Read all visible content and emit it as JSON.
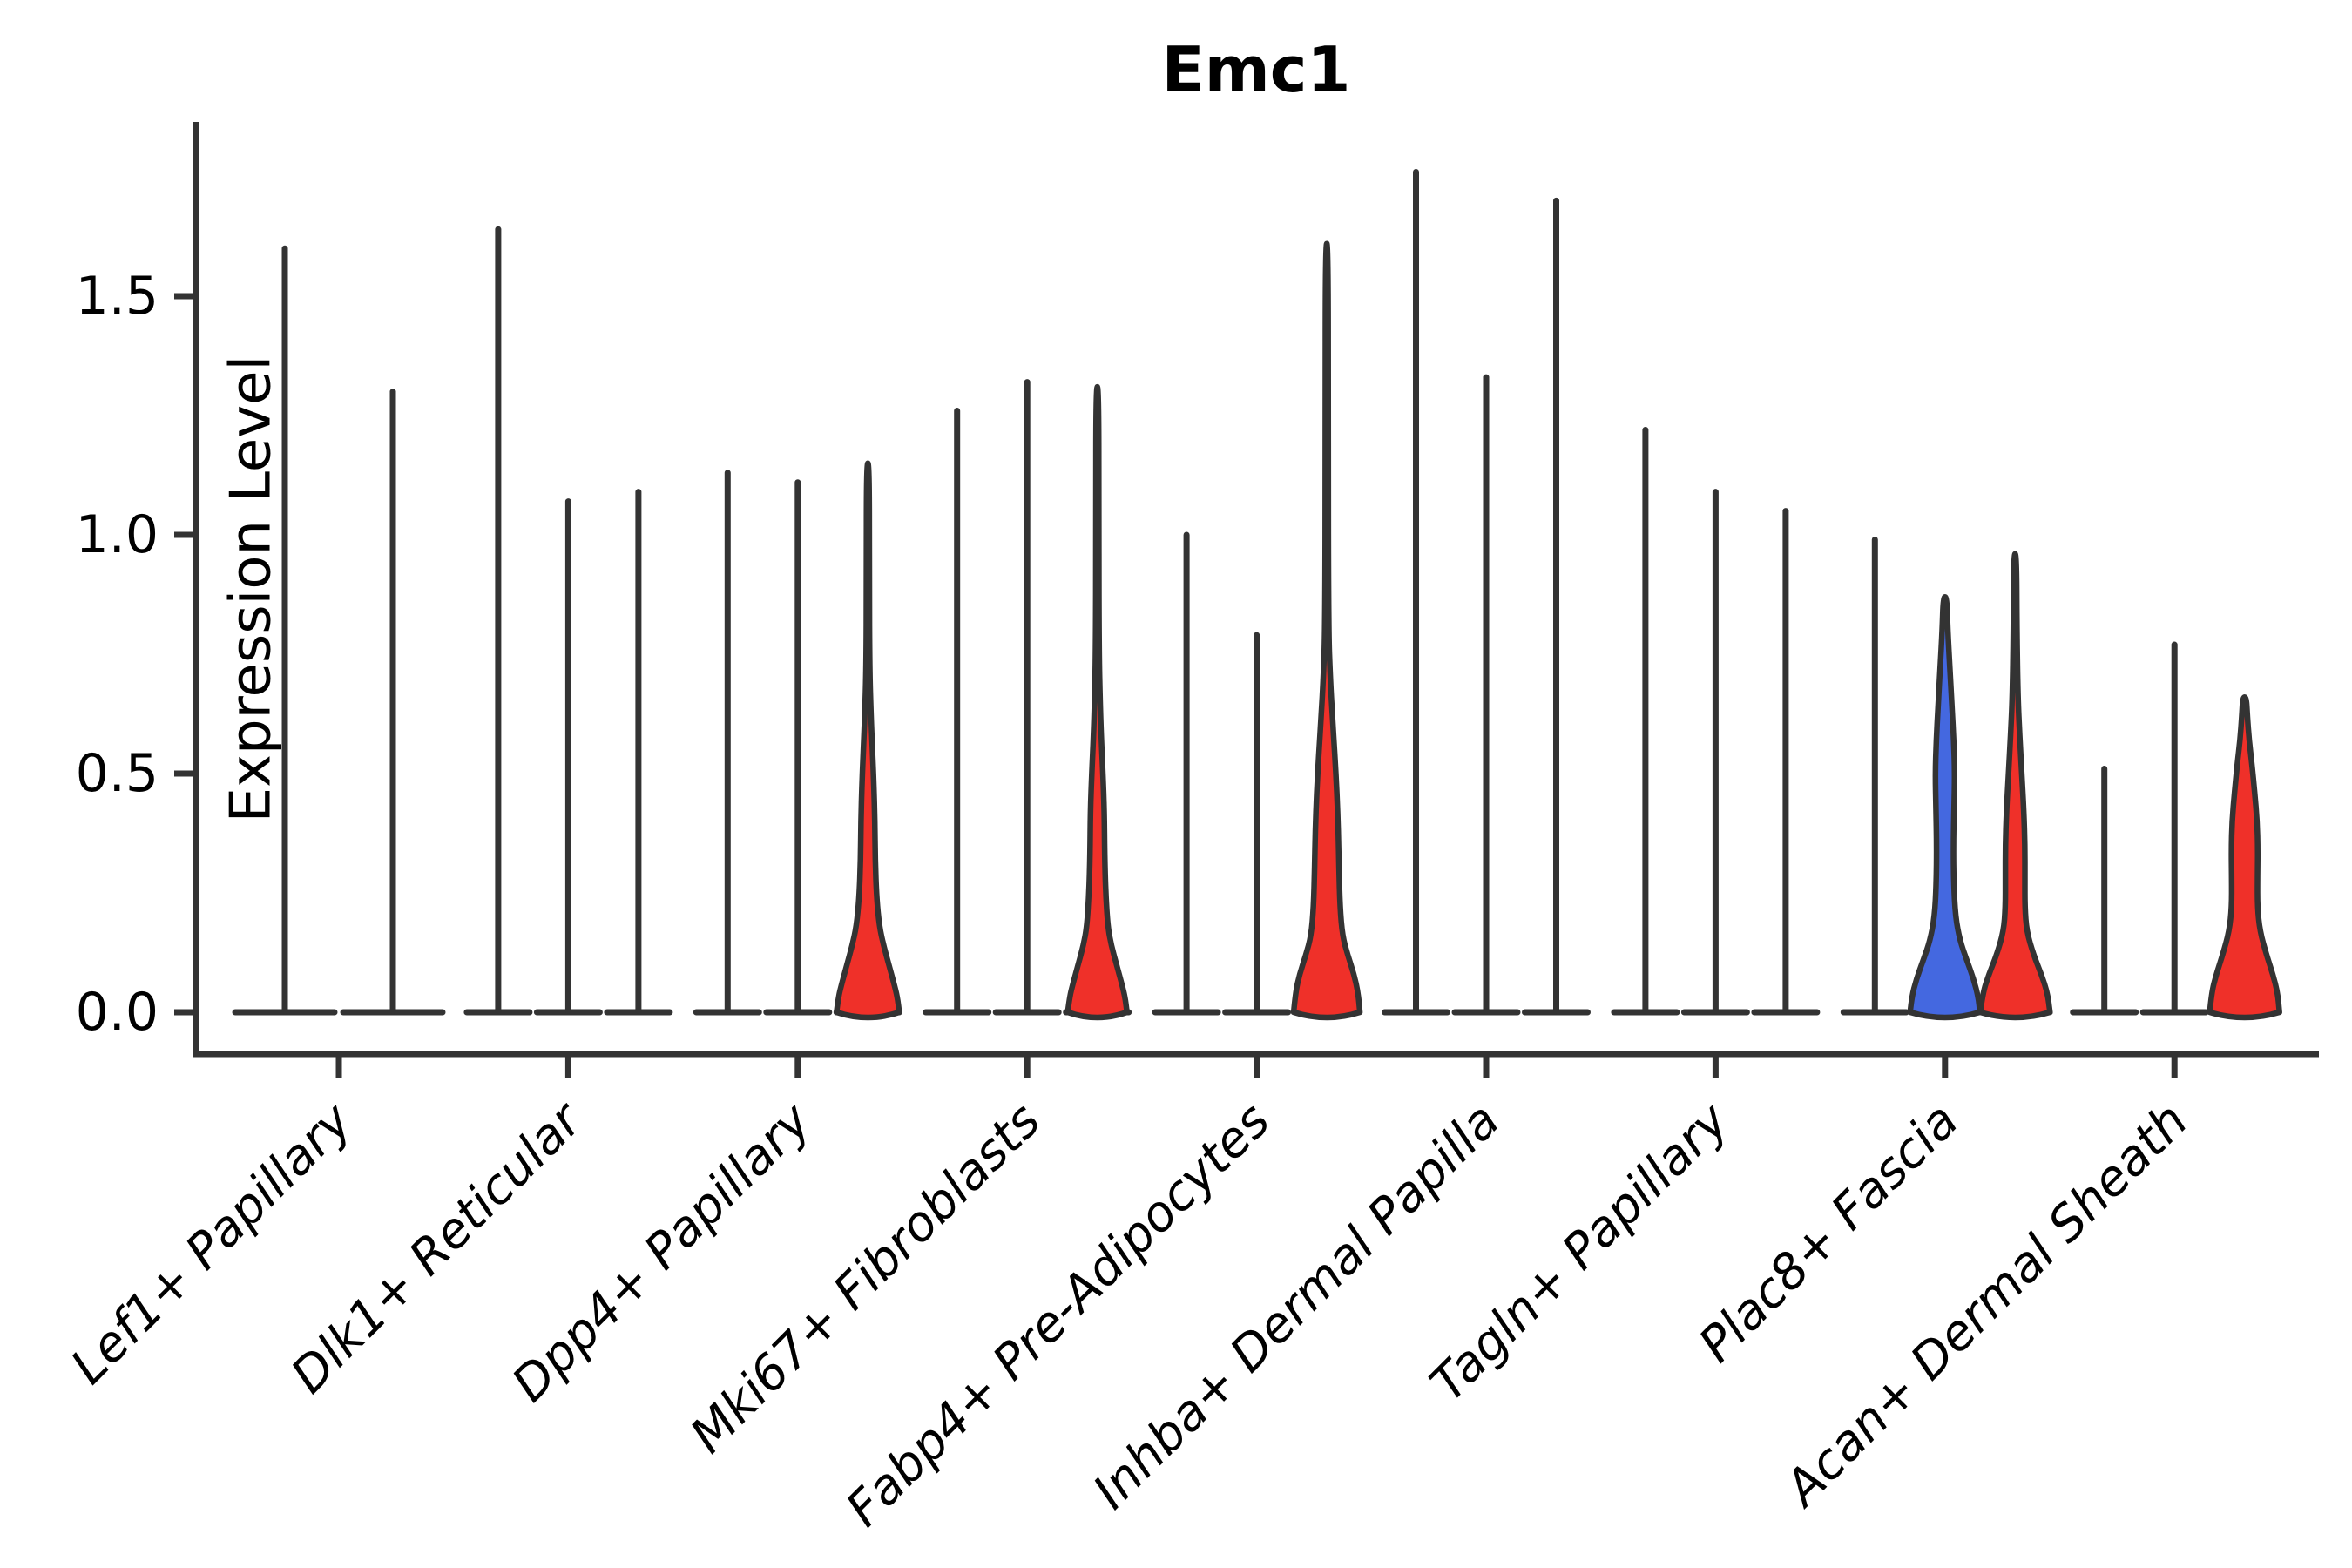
{
  "title": "Emc1",
  "ylabel": "Expression Level",
  "chart_data": {
    "type": "violin",
    "title": "Emc1",
    "xlabel": "",
    "ylabel": "Expression Level",
    "ylim": [
      0,
      1.86
    ],
    "yticks": [
      "0.0",
      "0.5",
      "1.0",
      "1.5"
    ],
    "ytick_values": [
      0.0,
      0.5,
      1.0,
      1.5
    ],
    "grid": false,
    "legend": "none",
    "colors": {
      "highlight_red": "#EF3029",
      "highlight_blue": "#4468E0",
      "outline": "#333333",
      "background": "#FFFFFF"
    },
    "categories": [
      "Lef1+ Papillary",
      "Dlk1+ Reticular",
      "Dpp4+ Papillary",
      "Mki67+ Fibroblasts",
      "Fabp4+ Pre-Adipocytes",
      "Inhba+ Dermal Papilla",
      "Tagln+ Papillary",
      "Plac8+ Fascia",
      "Acan+ Dermal Sheath"
    ],
    "groups": [
      {
        "category": "Lef1+ Papillary",
        "violins": [
          {
            "max": 1.6,
            "shape": "spike",
            "fill": "none"
          },
          {
            "max": 1.3,
            "shape": "spike",
            "fill": "none"
          }
        ]
      },
      {
        "category": "Dlk1+ Reticular",
        "violins": [
          {
            "max": 1.64,
            "shape": "spike",
            "fill": "none"
          },
          {
            "max": 1.07,
            "shape": "spike",
            "fill": "none"
          },
          {
            "max": 1.09,
            "shape": "spike",
            "fill": "none"
          }
        ]
      },
      {
        "category": "Dpp4+ Papillary",
        "violins": [
          {
            "max": 1.13,
            "shape": "spike",
            "fill": "none"
          },
          {
            "max": 1.11,
            "shape": "spike",
            "fill": "none"
          },
          {
            "max": 1.15,
            "shape": "body",
            "fill": "red",
            "profile": [
              [
                0,
                0.9
              ],
              [
                0.03,
                0.85
              ],
              [
                0.06,
                0.75
              ],
              [
                0.1,
                0.6
              ],
              [
                0.14,
                0.45
              ],
              [
                0.18,
                0.33
              ],
              [
                0.24,
                0.25
              ],
              [
                0.32,
                0.21
              ],
              [
                0.4,
                0.2
              ],
              [
                0.48,
                0.17
              ],
              [
                0.55,
                0.13
              ],
              [
                0.62,
                0.09
              ],
              [
                0.72,
                0.05
              ],
              [
                0.9,
                0.04
              ],
              [
                1.15,
                0.04
              ]
            ]
          }
        ]
      },
      {
        "category": "Mki67+ Fibroblasts",
        "violins": [
          {
            "max": 1.26,
            "shape": "spike",
            "fill": "none"
          },
          {
            "max": 1.32,
            "shape": "spike",
            "fill": "none"
          },
          {
            "max": 1.31,
            "shape": "body",
            "fill": "red",
            "profile": [
              [
                0,
                0.85
              ],
              [
                0.03,
                0.8
              ],
              [
                0.06,
                0.7
              ],
              [
                0.1,
                0.55
              ],
              [
                0.14,
                0.4
              ],
              [
                0.18,
                0.3
              ],
              [
                0.25,
                0.24
              ],
              [
                0.33,
                0.21
              ],
              [
                0.42,
                0.2
              ],
              [
                0.5,
                0.16
              ],
              [
                0.58,
                0.11
              ],
              [
                0.65,
                0.08
              ],
              [
                0.75,
                0.05
              ],
              [
                1.0,
                0.04
              ],
              [
                1.31,
                0.04
              ]
            ]
          }
        ]
      },
      {
        "category": "Fabp4+ Pre-Adipocytes",
        "violins": [
          {
            "max": 1.0,
            "shape": "spike",
            "fill": "none"
          },
          {
            "max": 0.79,
            "shape": "spike",
            "fill": "none"
          },
          {
            "max": 1.61,
            "shape": "body",
            "fill": "red",
            "profile": [
              [
                0,
                0.95
              ],
              [
                0.04,
                0.9
              ],
              [
                0.08,
                0.78
              ],
              [
                0.12,
                0.6
              ],
              [
                0.16,
                0.45
              ],
              [
                0.22,
                0.38
              ],
              [
                0.3,
                0.35
              ],
              [
                0.38,
                0.33
              ],
              [
                0.46,
                0.29
              ],
              [
                0.54,
                0.23
              ],
              [
                0.62,
                0.16
              ],
              [
                0.7,
                0.1
              ],
              [
                0.8,
                0.05
              ],
              [
                1.2,
                0.04
              ],
              [
                1.61,
                0.04
              ]
            ]
          }
        ]
      },
      {
        "category": "Inhba+ Dermal Papilla",
        "violins": [
          {
            "max": 1.76,
            "shape": "spike",
            "fill": "none"
          },
          {
            "max": 1.33,
            "shape": "spike",
            "fill": "none"
          },
          {
            "max": 1.7,
            "shape": "spike",
            "fill": "none"
          }
        ]
      },
      {
        "category": "Tagln+ Papillary",
        "violins": [
          {
            "max": 1.22,
            "shape": "spike",
            "fill": "none"
          },
          {
            "max": 1.09,
            "shape": "spike",
            "fill": "none"
          },
          {
            "max": 1.05,
            "shape": "spike",
            "fill": "none"
          }
        ]
      },
      {
        "category": "Plac8+ Fascia",
        "violins": [
          {
            "max": 0.99,
            "shape": "spike",
            "fill": "none"
          },
          {
            "max": 0.87,
            "shape": "body",
            "fill": "blue",
            "profile": [
              [
                0,
                1.0
              ],
              [
                0.03,
                0.96
              ],
              [
                0.07,
                0.82
              ],
              [
                0.11,
                0.62
              ],
              [
                0.15,
                0.43
              ],
              [
                0.2,
                0.3
              ],
              [
                0.27,
                0.25
              ],
              [
                0.35,
                0.24
              ],
              [
                0.43,
                0.26
              ],
              [
                0.5,
                0.28
              ],
              [
                0.57,
                0.25
              ],
              [
                0.64,
                0.2
              ],
              [
                0.72,
                0.14
              ],
              [
                0.8,
                0.08
              ],
              [
                0.87,
                0.05
              ]
            ]
          },
          {
            "max": 0.96,
            "shape": "body",
            "fill": "red",
            "profile": [
              [
                0,
                1.0
              ],
              [
                0.04,
                0.93
              ],
              [
                0.08,
                0.75
              ],
              [
                0.12,
                0.53
              ],
              [
                0.17,
                0.33
              ],
              [
                0.22,
                0.28
              ],
              [
                0.28,
                0.28
              ],
              [
                0.35,
                0.28
              ],
              [
                0.42,
                0.25
              ],
              [
                0.5,
                0.19
              ],
              [
                0.58,
                0.13
              ],
              [
                0.66,
                0.08
              ],
              [
                0.8,
                0.05
              ],
              [
                0.96,
                0.04
              ]
            ]
          }
        ]
      },
      {
        "category": "Acan+ Dermal Sheath",
        "violins": [
          {
            "max": 0.51,
            "shape": "spike",
            "fill": "none"
          },
          {
            "max": 0.77,
            "shape": "spike",
            "fill": "none"
          },
          {
            "max": 0.66,
            "shape": "body",
            "fill": "red",
            "profile": [
              [
                0,
                1.0
              ],
              [
                0.04,
                0.95
              ],
              [
                0.08,
                0.81
              ],
              [
                0.12,
                0.63
              ],
              [
                0.17,
                0.44
              ],
              [
                0.22,
                0.37
              ],
              [
                0.28,
                0.37
              ],
              [
                0.34,
                0.38
              ],
              [
                0.4,
                0.36
              ],
              [
                0.46,
                0.29
              ],
              [
                0.52,
                0.21
              ],
              [
                0.57,
                0.13
              ],
              [
                0.62,
                0.08
              ],
              [
                0.66,
                0.05
              ]
            ]
          }
        ]
      }
    ]
  }
}
